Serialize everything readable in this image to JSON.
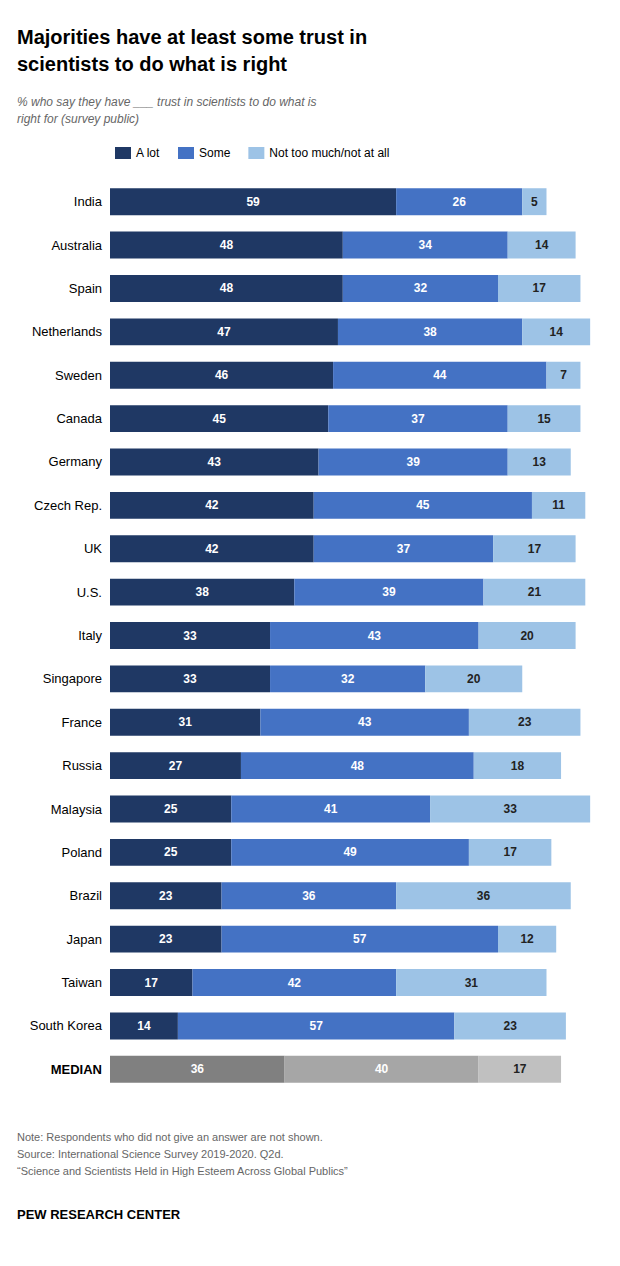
{
  "chart_data": {
    "type": "bar",
    "orientation": "horizontal",
    "stacked": true,
    "title": "Majorities have at least some trust in\nscientists to do what is right",
    "subtitle": "% who say they have ___ trust in scientists to do what is\nright for (survey public)",
    "categories": [
      "India",
      "Australia",
      "Spain",
      "Netherlands",
      "Sweden",
      "Canada",
      "Germany",
      "Czech Rep.",
      "UK",
      "U.S.",
      "Italy",
      "Singapore",
      "France",
      "Russia",
      "Malaysia",
      "Poland",
      "Brazil",
      "Japan",
      "Taiwan",
      "South Korea",
      "MEDIAN"
    ],
    "series": [
      {
        "name": "A lot",
        "color": "#1f3864",
        "colors": [
          "#1f3864",
          "#1f3864",
          "#1f3864",
          "#1f3864",
          "#1f3864",
          "#1f3864",
          "#1f3864",
          "#1f3864",
          "#1f3864",
          "#1f3864",
          "#1f3864",
          "#1f3864",
          "#1f3864",
          "#1f3864",
          "#1f3864",
          "#1f3864",
          "#1f3864",
          "#1f3864",
          "#1f3864",
          "#1f3864",
          "#808080"
        ],
        "values": [
          59,
          48,
          48,
          47,
          46,
          45,
          43,
          42,
          42,
          38,
          33,
          33,
          31,
          27,
          25,
          25,
          23,
          23,
          17,
          14,
          36
        ]
      },
      {
        "name": "Some",
        "color": "#4472c4",
        "colors": [
          "#4472c4",
          "#4472c4",
          "#4472c4",
          "#4472c4",
          "#4472c4",
          "#4472c4",
          "#4472c4",
          "#4472c4",
          "#4472c4",
          "#4472c4",
          "#4472c4",
          "#4472c4",
          "#4472c4",
          "#4472c4",
          "#4472c4",
          "#4472c4",
          "#4472c4",
          "#4472c4",
          "#4472c4",
          "#4472c4",
          "#a6a6a6"
        ],
        "values": [
          26,
          34,
          32,
          38,
          44,
          37,
          39,
          45,
          37,
          39,
          43,
          32,
          43,
          48,
          41,
          49,
          36,
          57,
          42,
          57,
          40
        ]
      },
      {
        "name": "Not too much/not at all",
        "color": "#9dc3e6",
        "colors": [
          "#9dc3e6",
          "#9dc3e6",
          "#9dc3e6",
          "#9dc3e6",
          "#9dc3e6",
          "#9dc3e6",
          "#9dc3e6",
          "#9dc3e6",
          "#9dc3e6",
          "#9dc3e6",
          "#9dc3e6",
          "#9dc3e6",
          "#9dc3e6",
          "#9dc3e6",
          "#9dc3e6",
          "#9dc3e6",
          "#9dc3e6",
          "#9dc3e6",
          "#9dc3e6",
          "#9dc3e6",
          "#c0c0c0"
        ],
        "values": [
          5,
          14,
          17,
          14,
          7,
          15,
          13,
          11,
          17,
          21,
          20,
          20,
          23,
          18,
          33,
          17,
          36,
          12,
          31,
          23,
          17
        ]
      }
    ],
    "xlim": [
      0,
      100
    ],
    "data_labels": true,
    "tick_labels": "y",
    "grid": false,
    "legend": "top",
    "notes": [
      "Note: Respondents who did not give an answer are not shown.",
      "Source: International Science Survey 2019-2020. Q2d.",
      "“Science and Scientists Held in High Esteem Across Global Publics”"
    ],
    "footer": "PEW RESEARCH CENTER"
  }
}
